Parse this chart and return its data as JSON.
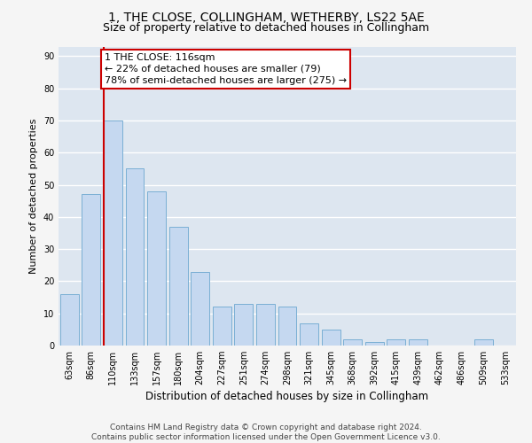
{
  "title": "1, THE CLOSE, COLLINGHAM, WETHERBY, LS22 5AE",
  "subtitle": "Size of property relative to detached houses in Collingham",
  "xlabel": "Distribution of detached houses by size in Collingham",
  "ylabel": "Number of detached properties",
  "categories": [
    "63sqm",
    "86sqm",
    "110sqm",
    "133sqm",
    "157sqm",
    "180sqm",
    "204sqm",
    "227sqm",
    "251sqm",
    "274sqm",
    "298sqm",
    "321sqm",
    "345sqm",
    "368sqm",
    "392sqm",
    "415sqm",
    "439sqm",
    "462sqm",
    "486sqm",
    "509sqm",
    "533sqm"
  ],
  "values": [
    16,
    47,
    70,
    55,
    48,
    37,
    23,
    12,
    13,
    13,
    12,
    7,
    5,
    2,
    1,
    2,
    2,
    0,
    0,
    2,
    0
  ],
  "bar_color": "#c5d8f0",
  "bar_edge_color": "#7aafd4",
  "fig_bg_color": "#f5f5f5",
  "plot_bg_color": "#dde6f0",
  "grid_color": "#ffffff",
  "annotation_text": "1 THE CLOSE: 116sqm\n← 22% of detached houses are smaller (79)\n78% of semi-detached houses are larger (275) →",
  "annotation_box_facecolor": "#ffffff",
  "annotation_box_edgecolor": "#cc0000",
  "vline_color": "#cc0000",
  "vline_x": 1.575,
  "ylim": [
    0,
    93
  ],
  "yticks": [
    0,
    10,
    20,
    30,
    40,
    50,
    60,
    70,
    80,
    90
  ],
  "footnote": "Contains HM Land Registry data © Crown copyright and database right 2024.\nContains public sector information licensed under the Open Government Licence v3.0.",
  "title_fontsize": 10,
  "subtitle_fontsize": 9,
  "xlabel_fontsize": 8.5,
  "ylabel_fontsize": 8,
  "tick_fontsize": 7,
  "annotation_fontsize": 8,
  "footnote_fontsize": 6.5
}
